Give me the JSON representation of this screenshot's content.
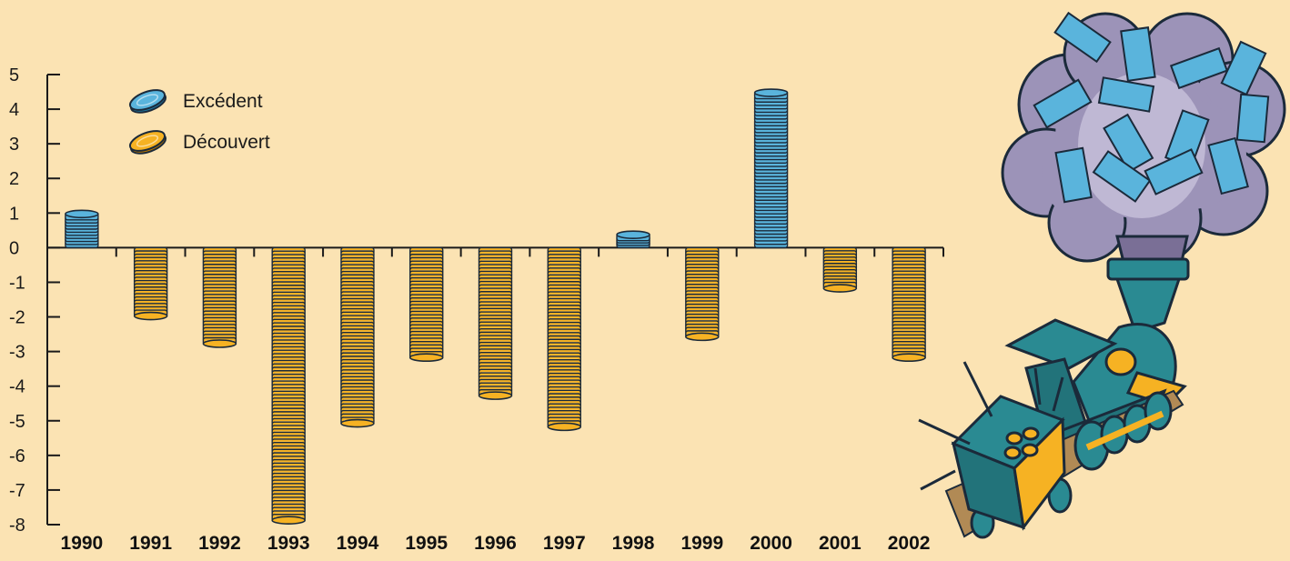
{
  "chart_data": {
    "type": "bar",
    "categories": [
      "1990",
      "1991",
      "1992",
      "1993",
      "1994",
      "1995",
      "1996",
      "1997",
      "1998",
      "1999",
      "2000",
      "2001",
      "2002"
    ],
    "values": [
      1.0,
      -2.0,
      -2.8,
      -7.9,
      -5.1,
      -3.2,
      -4.3,
      -5.2,
      0.4,
      -2.6,
      4.5,
      -1.2,
      -3.2
    ],
    "ylim": [
      -8,
      5
    ],
    "yticks": [
      5,
      4,
      3,
      2,
      1,
      0,
      -1,
      -2,
      -3,
      -4,
      -5,
      -6,
      -7,
      -8
    ],
    "ytick_labels": [
      "5",
      "4",
      "3",
      "2",
      "1",
      "0",
      "-1",
      "-2",
      "-3",
      "-4",
      "-5",
      "-6",
      "-7",
      "-8"
    ],
    "legend": [
      {
        "label": "Excédent",
        "color": "#5ab4dc"
      },
      {
        "label": "Découvert",
        "color": "#f6b223"
      }
    ],
    "legend_position": "top-left",
    "grid": false,
    "title": "",
    "xlabel": "",
    "ylabel": ""
  },
  "colors": {
    "background": "#fbe3b3",
    "surplus": "#5ab4dc",
    "deficit": "#f6b223",
    "outline": "#1b2a3a"
  },
  "illustration": {
    "icon": "steam-locomotive-money-smoke-icon"
  }
}
